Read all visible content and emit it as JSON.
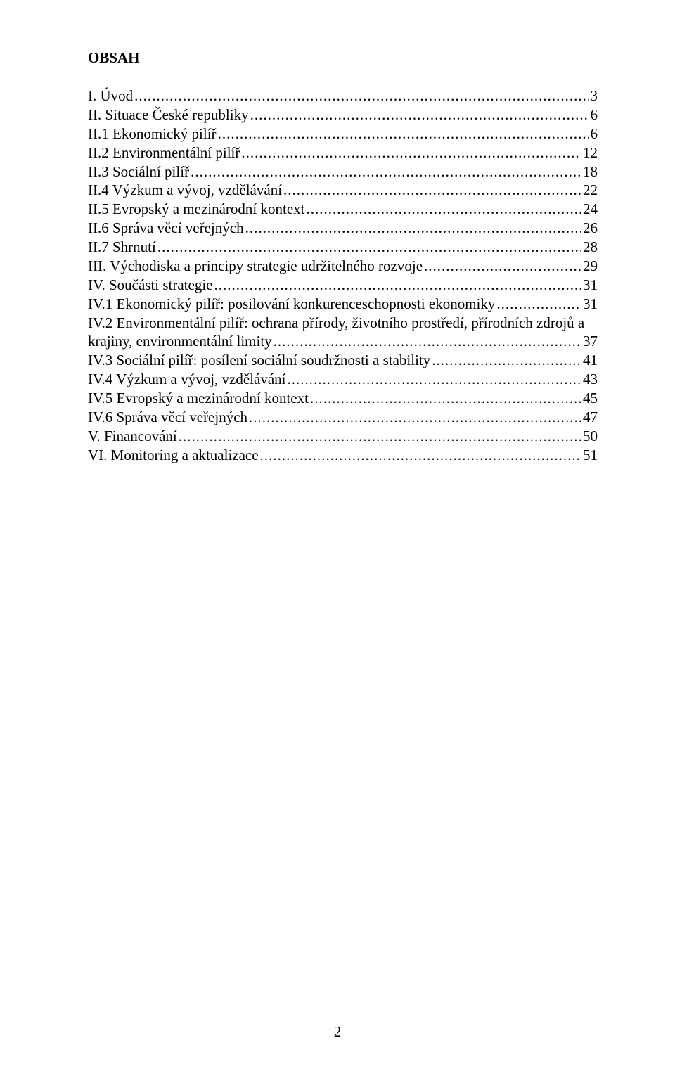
{
  "title": "OBSAH",
  "page_number": "2",
  "toc": [
    {
      "label": "I. Úvod",
      "page": "3",
      "wrap": false
    },
    {
      "label": "II. Situace České republiky",
      "page": "6",
      "wrap": false
    },
    {
      "label": "II.1 Ekonomický pilíř",
      "page": "6",
      "wrap": false
    },
    {
      "label": "II.2 Environmentální pilíř",
      "page": "12",
      "wrap": false
    },
    {
      "label": "II.3 Sociální pilíř",
      "page": "18",
      "wrap": false
    },
    {
      "label": "II.4 Výzkum a vývoj, vzdělávání",
      "page": "22",
      "wrap": false
    },
    {
      "label": "II.5 Evropský a mezinárodní kontext",
      "page": "24",
      "wrap": false
    },
    {
      "label": "II.6 Správa věcí veřejných",
      "page": "26",
      "wrap": false
    },
    {
      "label": "II.7 Shrnutí",
      "page": "28",
      "wrap": false
    },
    {
      "label": "III. Východiska a principy strategie udržitelného rozvoje",
      "page": "29",
      "wrap": false
    },
    {
      "label": "IV. Součásti strategie",
      "page": "31",
      "wrap": false
    },
    {
      "label": "IV.1 Ekonomický pilíř: posilování konkurenceschopnosti ekonomiky",
      "page": "31",
      "wrap": false
    },
    {
      "label_first": "IV.2 Environmentální pilíř: ochrana přírody, životního prostředí, přírodních zdrojů a",
      "label": "krajiny, environmentální limity",
      "page": "37",
      "wrap": true
    },
    {
      "label": "IV.3 Sociální pilíř: posílení sociální soudržnosti a stability",
      "page": "41",
      "wrap": false
    },
    {
      "label": "IV.4 Výzkum a vývoj, vzdělávání",
      "page": "43",
      "wrap": false
    },
    {
      "label": "IV.5 Evropský a mezinárodní kontext",
      "page": "45",
      "wrap": false
    },
    {
      "label": "IV.6 Správa věcí veřejných",
      "page": "47",
      "wrap": false
    },
    {
      "label": "V. Financování",
      "page": "50",
      "wrap": false
    },
    {
      "label": "VI. Monitoring a aktualizace",
      "page": "51",
      "wrap": false
    }
  ]
}
